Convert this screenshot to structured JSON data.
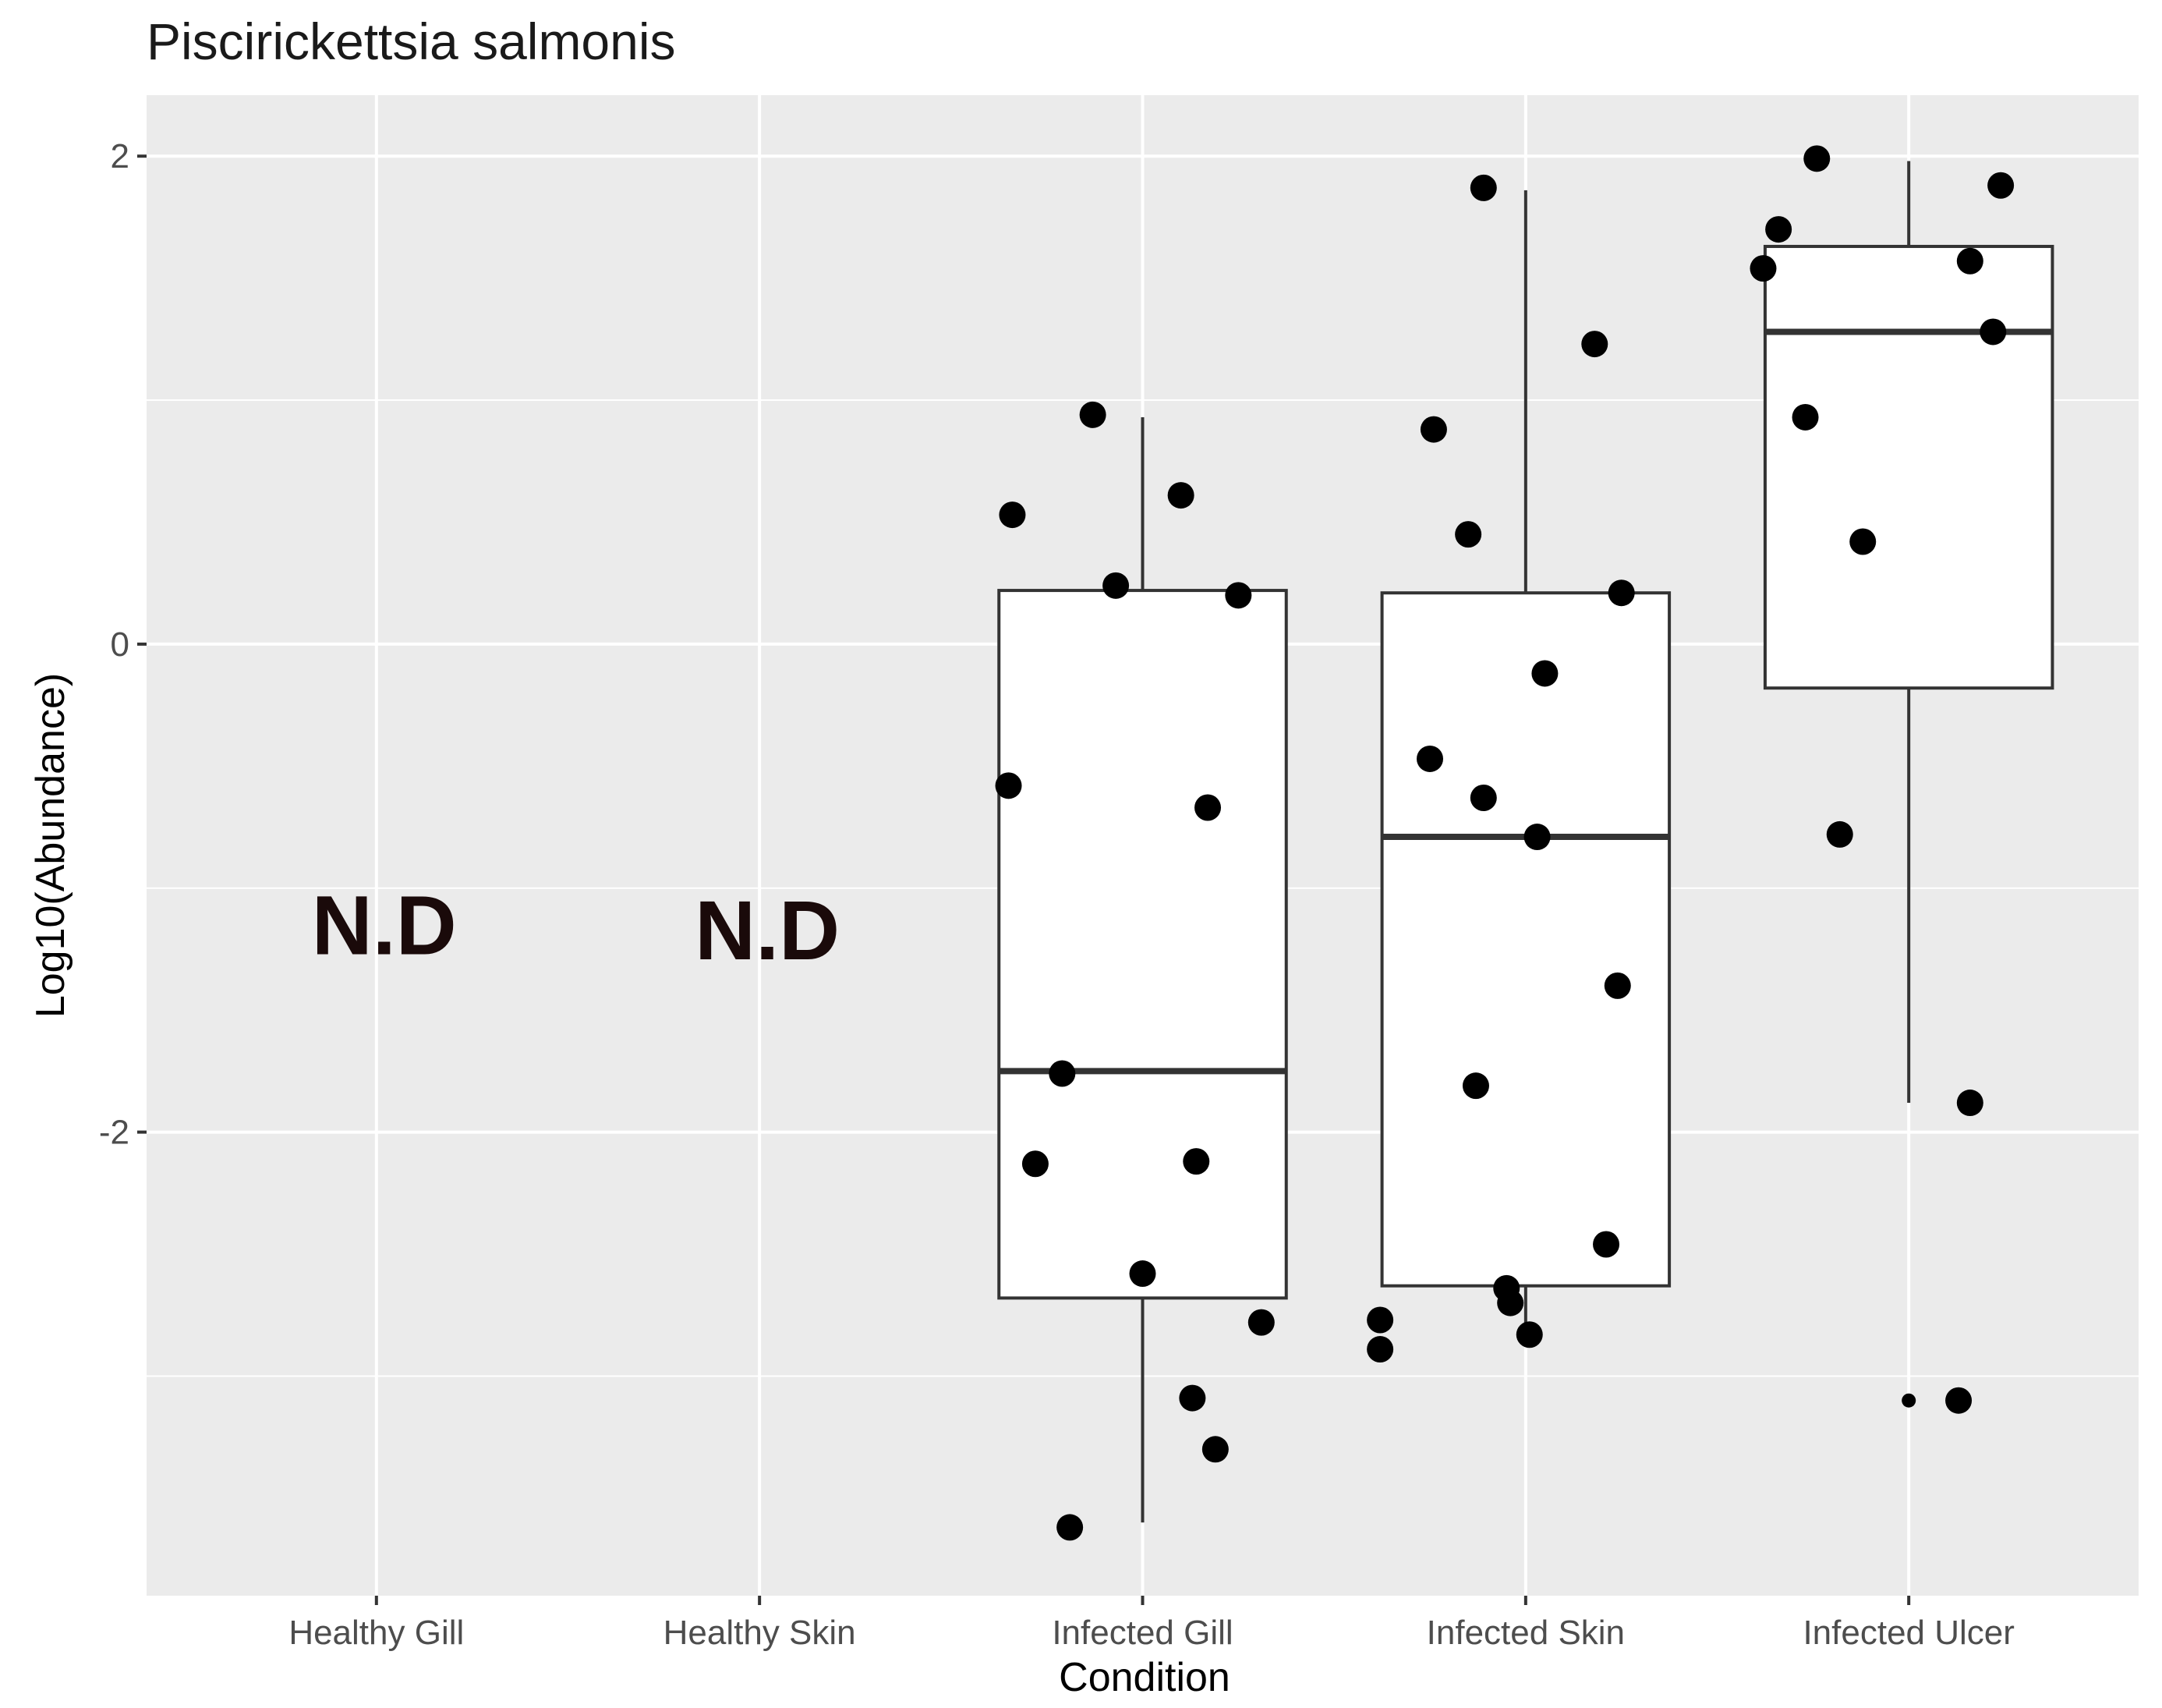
{
  "chart_data": {
    "type": "box",
    "title": "Piscirickettsia salmonis",
    "xlabel": "Condition",
    "ylabel": "Log10(Abundance)",
    "ylim": [
      -3.9,
      2.25
    ],
    "yticks": [
      -2,
      0,
      2
    ],
    "ytick_labels": [
      "-2",
      "0",
      "2"
    ],
    "grid": true,
    "legend": "none",
    "colors": {
      "panel": "#ebebeb",
      "grid": "#ffffff",
      "box_fill": "#ffffff",
      "box_stroke": "#333333",
      "point": "#000000",
      "nd_text": "#1a0a0a"
    },
    "categories": [
      "Healthy Gill",
      "Healthy Skin",
      "Infected Gill",
      "Infected Skin",
      "Infected Ulcer"
    ],
    "annotations": [
      {
        "category": "Healthy Gill",
        "text": "N.D",
        "y": -1.15
      },
      {
        "category": "Healthy Skin",
        "text": "N.D",
        "y": -1.17
      }
    ],
    "boxes": [
      {
        "category": "Infected Gill",
        "lower_whisker": -3.6,
        "q1": -2.68,
        "median": -1.75,
        "q3": 0.22,
        "upper_whisker": 0.93
      },
      {
        "category": "Infected Skin",
        "lower_whisker": -2.8,
        "q1": -2.63,
        "median": -0.79,
        "q3": 0.21,
        "upper_whisker": 1.86
      },
      {
        "category": "Infected Ulcer",
        "lower_whisker": -1.88,
        "q1": -0.18,
        "median": 1.28,
        "q3": 1.63,
        "upper_whisker": 1.98
      }
    ],
    "outliers": [
      {
        "category": "Infected Ulcer",
        "y": -3.1
      }
    ],
    "points": [
      {
        "category": "Infected Gill",
        "x_offset": -0.35,
        "y": -0.58
      },
      {
        "category": "Infected Gill",
        "x_offset": -0.34,
        "y": 0.53
      },
      {
        "category": "Infected Gill",
        "x_offset": -0.13,
        "y": 0.94
      },
      {
        "category": "Infected Gill",
        "x_offset": -0.07,
        "y": 0.24
      },
      {
        "category": "Infected Gill",
        "x_offset": 0.1,
        "y": 0.61
      },
      {
        "category": "Infected Gill",
        "x_offset": 0.25,
        "y": 0.2
      },
      {
        "category": "Infected Gill",
        "x_offset": 0.17,
        "y": -0.67
      },
      {
        "category": "Infected Gill",
        "x_offset": -0.21,
        "y": -1.76
      },
      {
        "category": "Infected Gill",
        "x_offset": -0.28,
        "y": -2.13
      },
      {
        "category": "Infected Gill",
        "x_offset": 0.14,
        "y": -2.12
      },
      {
        "category": "Infected Gill",
        "x_offset": 0.0,
        "y": -2.58
      },
      {
        "category": "Infected Gill",
        "x_offset": 0.31,
        "y": -2.78
      },
      {
        "category": "Infected Gill",
        "x_offset": 0.13,
        "y": -3.09
      },
      {
        "category": "Infected Gill",
        "x_offset": 0.19,
        "y": -3.3
      },
      {
        "category": "Infected Gill",
        "x_offset": -0.19,
        "y": -3.62
      },
      {
        "category": "Infected Skin",
        "x_offset": -0.11,
        "y": 1.87
      },
      {
        "category": "Infected Skin",
        "x_offset": 0.18,
        "y": 1.23
      },
      {
        "category": "Infected Skin",
        "x_offset": -0.24,
        "y": 0.88
      },
      {
        "category": "Infected Skin",
        "x_offset": -0.15,
        "y": 0.45
      },
      {
        "category": "Infected Skin",
        "x_offset": 0.25,
        "y": 0.21
      },
      {
        "category": "Infected Skin",
        "x_offset": 0.05,
        "y": -0.12
      },
      {
        "category": "Infected Skin",
        "x_offset": -0.25,
        "y": -0.47
      },
      {
        "category": "Infected Skin",
        "x_offset": -0.11,
        "y": -0.63
      },
      {
        "category": "Infected Skin",
        "x_offset": 0.03,
        "y": -0.79
      },
      {
        "category": "Infected Skin",
        "x_offset": 0.24,
        "y": -1.4
      },
      {
        "category": "Infected Skin",
        "x_offset": -0.13,
        "y": -1.81
      },
      {
        "category": "Infected Skin",
        "x_offset": 0.21,
        "y": -2.46
      },
      {
        "category": "Infected Skin",
        "x_offset": -0.05,
        "y": -2.64
      },
      {
        "category": "Infected Skin",
        "x_offset": -0.04,
        "y": -2.7
      },
      {
        "category": "Infected Skin",
        "x_offset": 0.01,
        "y": -2.83
      },
      {
        "category": "Infected Skin",
        "x_offset": -0.38,
        "y": -2.77
      },
      {
        "category": "Infected Skin",
        "x_offset": -0.38,
        "y": -2.89
      },
      {
        "category": "Infected Ulcer",
        "x_offset": -0.24,
        "y": 1.99
      },
      {
        "category": "Infected Ulcer",
        "x_offset": -0.34,
        "y": 1.7
      },
      {
        "category": "Infected Ulcer",
        "x_offset": -0.38,
        "y": 1.54
      },
      {
        "category": "Infected Ulcer",
        "x_offset": 0.24,
        "y": 1.88
      },
      {
        "category": "Infected Ulcer",
        "x_offset": 0.16,
        "y": 1.57
      },
      {
        "category": "Infected Ulcer",
        "x_offset": 0.22,
        "y": 1.28
      },
      {
        "category": "Infected Ulcer",
        "x_offset": -0.27,
        "y": 0.93
      },
      {
        "category": "Infected Ulcer",
        "x_offset": -0.12,
        "y": 0.42
      },
      {
        "category": "Infected Ulcer",
        "x_offset": -0.18,
        "y": -0.78
      },
      {
        "category": "Infected Ulcer",
        "x_offset": 0.16,
        "y": -1.88
      },
      {
        "category": "Infected Ulcer",
        "x_offset": 0.13,
        "y": -3.1
      }
    ]
  }
}
